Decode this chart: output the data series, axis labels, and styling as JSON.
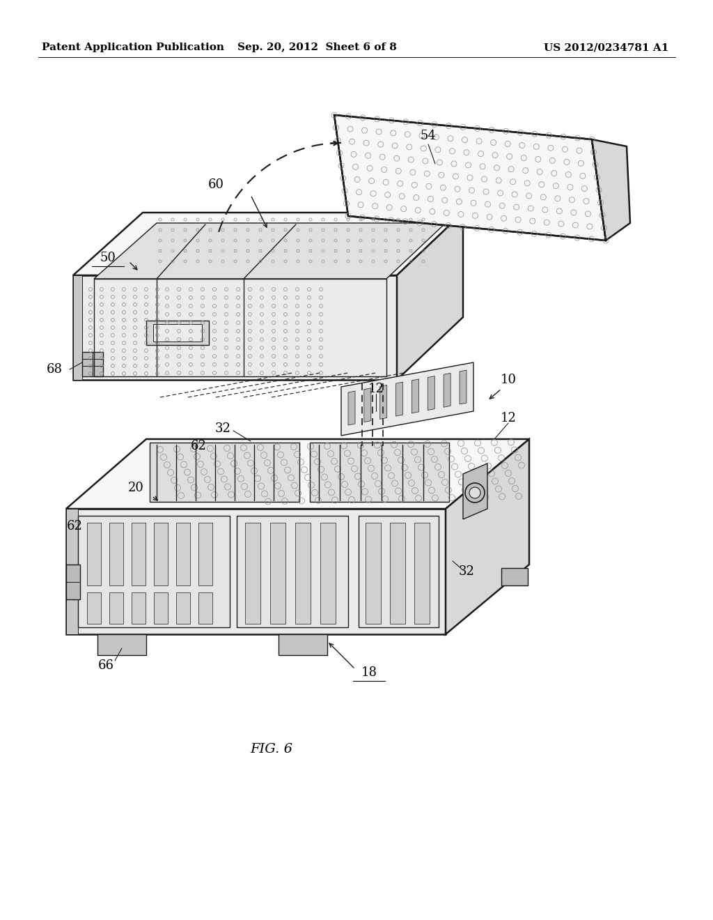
{
  "background_color": "#ffffff",
  "header_left": "Patent Application Publication",
  "header_center": "Sep. 20, 2012  Sheet 6 of 8",
  "header_right": "US 2012/0234781 A1",
  "figure_label": "FIG. 6",
  "fig_width": 10.24,
  "fig_height": 13.2,
  "dpi": 100,
  "line_color": "#1a1a1a",
  "lw_main": 1.8,
  "lw_inner": 1.0,
  "lw_thin": 0.7,
  "dot_color": "#555555",
  "dot_size": 2.5,
  "face_light": "#f7f7f7",
  "face_mid": "#ebebeb",
  "face_dark": "#d8d8d8",
  "face_darker": "#c8c8c8"
}
